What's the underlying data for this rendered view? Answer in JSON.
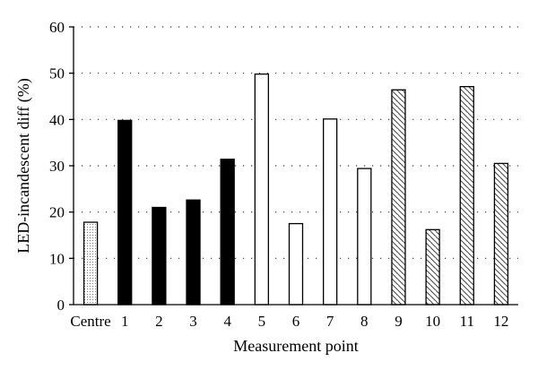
{
  "chart_data": {
    "type": "bar",
    "categories": [
      "Centre",
      "1",
      "2",
      "3",
      "4",
      "5",
      "6",
      "7",
      "8",
      "9",
      "10",
      "11",
      "12"
    ],
    "values": [
      17.8,
      39.8,
      21.0,
      22.6,
      31.4,
      49.8,
      17.5,
      40.1,
      29.4,
      46.4,
      16.2,
      47.1,
      30.5
    ],
    "fill_patterns": [
      "dotted",
      "solid",
      "solid",
      "solid",
      "solid",
      "empty",
      "empty",
      "empty",
      "empty",
      "hatched",
      "hatched",
      "hatched",
      "hatched"
    ],
    "xlabel": "Measurement point",
    "ylabel": "LED-incandescent diff (%)",
    "ylim": [
      0,
      60
    ],
    "yticks": [
      0,
      10,
      20,
      30,
      40,
      50,
      60
    ],
    "grid": "horizontal dotted",
    "legend": "none",
    "colors": {
      "bar_outline": "#000000",
      "solid_fill": "#000000",
      "background": "#ffffff"
    }
  }
}
